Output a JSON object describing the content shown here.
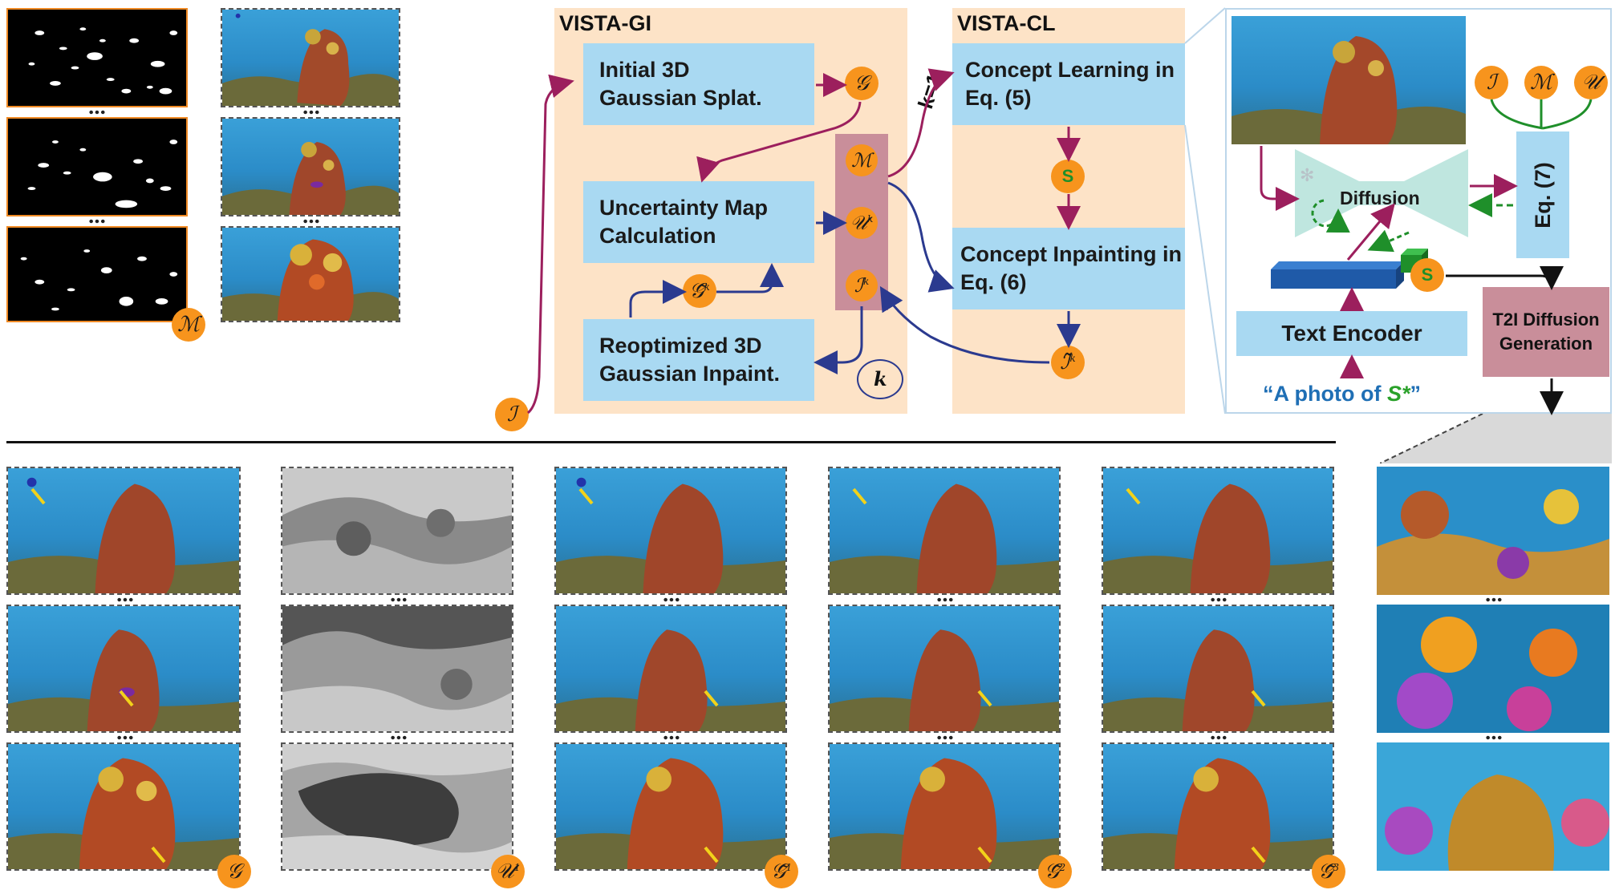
{
  "panels": {
    "gi_title": "VISTA-GI",
    "cl_title": "VISTA-CL"
  },
  "boxes": {
    "initial_gaussian": "Initial 3D Gaussian Splat.",
    "uncertainty_map": "Uncertainty Map Calculation",
    "reoptimized_gaussian": "Reoptimized 3D Gaussian Inpaint.",
    "concept_learning": "Concept Learning in Eq. (5)",
    "concept_inpainting": "Concept Inpainting in Eq. (6)",
    "text_encoder": "Text Encoder",
    "eq7": "Eq. (7)",
    "diffusion": "Diffusion",
    "t2i_diffusion": "T2I Diffusion Generation"
  },
  "labels": {
    "k_equals_1": "k=1",
    "k_loop": "k",
    "prompt_prefix": "“A photo of ",
    "prompt_token": "S*",
    "prompt_suffix": "”"
  },
  "symbols": {
    "mask": "ℳ",
    "images": "ℐ",
    "gaussian": "𝒢",
    "uncertainty": "𝒰",
    "uncertainty_k": "k",
    "gaussian_tilde": "𝒢̃",
    "gaussian_tilde_k": "k",
    "images_k": "ℐ",
    "images_k_sup": "k",
    "inpainted_tilde": "ℐ̃",
    "inpainted_tilde_k": "k",
    "concept": "S",
    "uncertainty_1": "1",
    "gaussian_tilde_1": "1",
    "gaussian_tilde_2": "2",
    "gaussian_tilde_3": "3"
  },
  "colors": {
    "panel_bg": "#fde3c7",
    "box_blue": "#a9d9f2",
    "badge_orange": "#f7941d",
    "arrow_purple": "#9c1f5d",
    "arrow_blue": "#2b3a8f",
    "stack_pink": "#c98e9a",
    "diffusion_teal": "#bfe6df",
    "arrow_green": "#1f8f2a"
  }
}
